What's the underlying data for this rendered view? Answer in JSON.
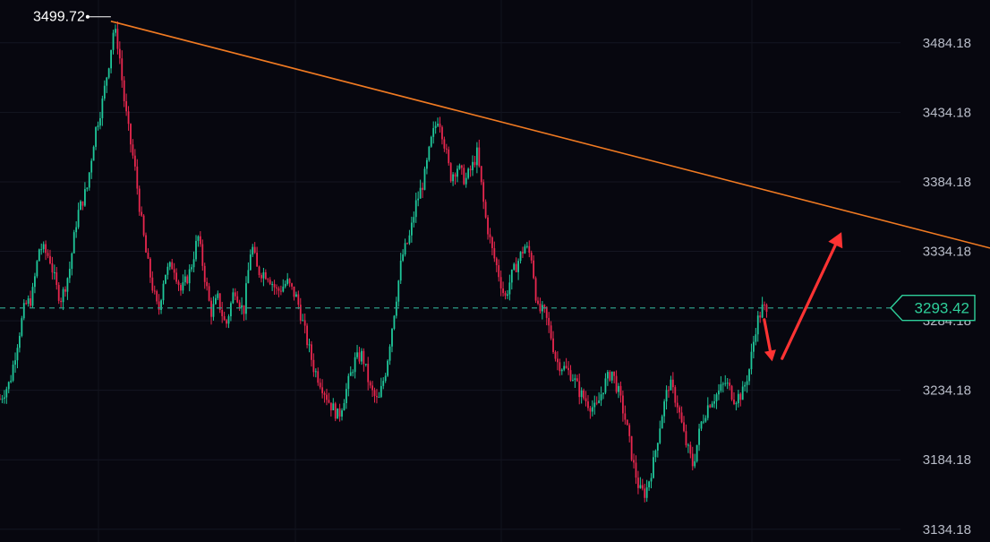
{
  "chart_data": {
    "type": "candlestick",
    "y_axis": {
      "ticks": [
        "3484.18",
        "3434.18",
        "3384.18",
        "3334.18",
        "3284.18",
        "3234.18",
        "3184.18",
        "3134.18"
      ],
      "ylim": [
        3125,
        3515
      ],
      "position": "right"
    },
    "grid": true,
    "annotations": {
      "peak_label": "3499.72",
      "current_price_label": "3293.42",
      "current_price": 3293.42,
      "trendline": [
        {
          "x": 0.112,
          "y": 3499.72
        },
        {
          "x": 1.0,
          "y": 3336.5
        }
      ],
      "arrow_down": {
        "from": {
          "x": 0.772,
          "y": 3285
        },
        "to": {
          "x": 0.78,
          "y": 3255
        }
      },
      "arrow_up": {
        "from": {
          "x": 0.79,
          "y": 3257
        },
        "to": {
          "x": 0.85,
          "y": 3348
        }
      }
    },
    "price_path": [
      [
        0.0,
        3228
      ],
      [
        0.01,
        3240
      ],
      [
        0.018,
        3270
      ],
      [
        0.025,
        3295
      ],
      [
        0.032,
        3300
      ],
      [
        0.04,
        3338
      ],
      [
        0.05,
        3330
      ],
      [
        0.058,
        3305
      ],
      [
        0.062,
        3300
      ],
      [
        0.07,
        3320
      ],
      [
        0.078,
        3360
      ],
      [
        0.088,
        3380
      ],
      [
        0.096,
        3420
      ],
      [
        0.103,
        3440
      ],
      [
        0.11,
        3470
      ],
      [
        0.115,
        3495
      ],
      [
        0.12,
        3480
      ],
      [
        0.125,
        3445
      ],
      [
        0.13,
        3420
      ],
      [
        0.136,
        3395
      ],
      [
        0.142,
        3360
      ],
      [
        0.148,
        3330
      ],
      [
        0.155,
        3305
      ],
      [
        0.16,
        3290
      ],
      [
        0.166,
        3318
      ],
      [
        0.175,
        3325
      ],
      [
        0.183,
        3305
      ],
      [
        0.192,
        3320
      ],
      [
        0.2,
        3345
      ],
      [
        0.207,
        3315
      ],
      [
        0.213,
        3290
      ],
      [
        0.22,
        3300
      ],
      [
        0.228,
        3280
      ],
      [
        0.237,
        3308
      ],
      [
        0.246,
        3290
      ],
      [
        0.254,
        3340
      ],
      [
        0.26,
        3320
      ],
      [
        0.27,
        3318
      ],
      [
        0.28,
        3305
      ],
      [
        0.29,
        3312
      ],
      [
        0.3,
        3300
      ],
      [
        0.31,
        3270
      ],
      [
        0.317,
        3250
      ],
      [
        0.325,
        3238
      ],
      [
        0.333,
        3225
      ],
      [
        0.342,
        3215
      ],
      [
        0.35,
        3235
      ],
      [
        0.358,
        3255
      ],
      [
        0.366,
        3260
      ],
      [
        0.374,
        3235
      ],
      [
        0.382,
        3225
      ],
      [
        0.39,
        3250
      ],
      [
        0.398,
        3290
      ],
      [
        0.406,
        3330
      ],
      [
        0.414,
        3345
      ],
      [
        0.42,
        3368
      ],
      [
        0.428,
        3385
      ],
      [
        0.436,
        3415
      ],
      [
        0.443,
        3432
      ],
      [
        0.448,
        3415
      ],
      [
        0.455,
        3388
      ],
      [
        0.462,
        3395
      ],
      [
        0.47,
        3385
      ],
      [
        0.477,
        3395
      ],
      [
        0.482,
        3405
      ],
      [
        0.49,
        3360
      ],
      [
        0.497,
        3335
      ],
      [
        0.503,
        3320
      ],
      [
        0.51,
        3300
      ],
      [
        0.516,
        3315
      ],
      [
        0.522,
        3325
      ],
      [
        0.53,
        3338
      ],
      [
        0.537,
        3330
      ],
      [
        0.543,
        3292
      ],
      [
        0.55,
        3290
      ],
      [
        0.556,
        3275
      ],
      [
        0.562,
        3255
      ],
      [
        0.57,
        3250
      ],
      [
        0.578,
        3245
      ],
      [
        0.586,
        3232
      ],
      [
        0.594,
        3225
      ],
      [
        0.602,
        3220
      ],
      [
        0.61,
        3238
      ],
      [
        0.618,
        3248
      ],
      [
        0.625,
        3232
      ],
      [
        0.632,
        3212
      ],
      [
        0.64,
        3180
      ],
      [
        0.646,
        3162
      ],
      [
        0.652,
        3160
      ],
      [
        0.66,
        3182
      ],
      [
        0.668,
        3215
      ],
      [
        0.676,
        3240
      ],
      [
        0.684,
        3225
      ],
      [
        0.692,
        3198
      ],
      [
        0.7,
        3180
      ],
      [
        0.708,
        3210
      ],
      [
        0.716,
        3225
      ],
      [
        0.725,
        3232
      ],
      [
        0.733,
        3240
      ],
      [
        0.742,
        3228
      ],
      [
        0.75,
        3232
      ],
      [
        0.757,
        3250
      ],
      [
        0.764,
        3282
      ],
      [
        0.771,
        3295
      ],
      [
        0.775,
        3287
      ]
    ]
  }
}
